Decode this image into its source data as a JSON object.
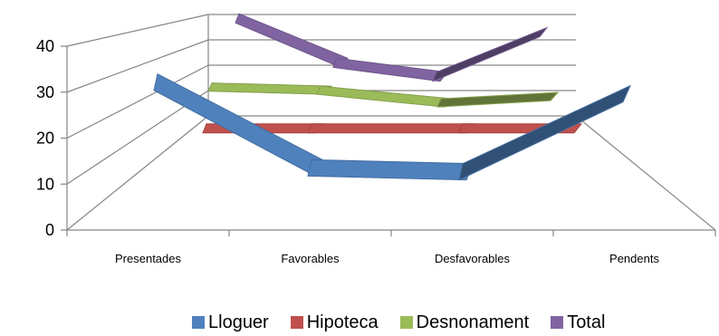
{
  "chart_data": {
    "type": "line",
    "style": "3d",
    "categories": [
      "Presentades",
      "Favorables",
      "Desfavorables",
      "Pendents"
    ],
    "ylim": [
      0,
      40
    ],
    "yticks": [
      "0",
      "10",
      "20",
      "30",
      "40"
    ],
    "grid": true,
    "legend_position": "bottom-right",
    "series": [
      {
        "name": "Lloguer",
        "values": [
          28,
          6,
          5,
          25
        ],
        "color": "#4f81bd"
      },
      {
        "name": "Hipoteca",
        "values": [
          12,
          12,
          12,
          12
        ],
        "color": "#c0504d"
      },
      {
        "name": "Desnonament",
        "values": [
          20,
          19,
          15,
          17
        ],
        "color": "#9bbb59"
      },
      {
        "name": "Total",
        "values": [
          40,
          24,
          19,
          35
        ],
        "color": "#8064a2"
      }
    ]
  }
}
